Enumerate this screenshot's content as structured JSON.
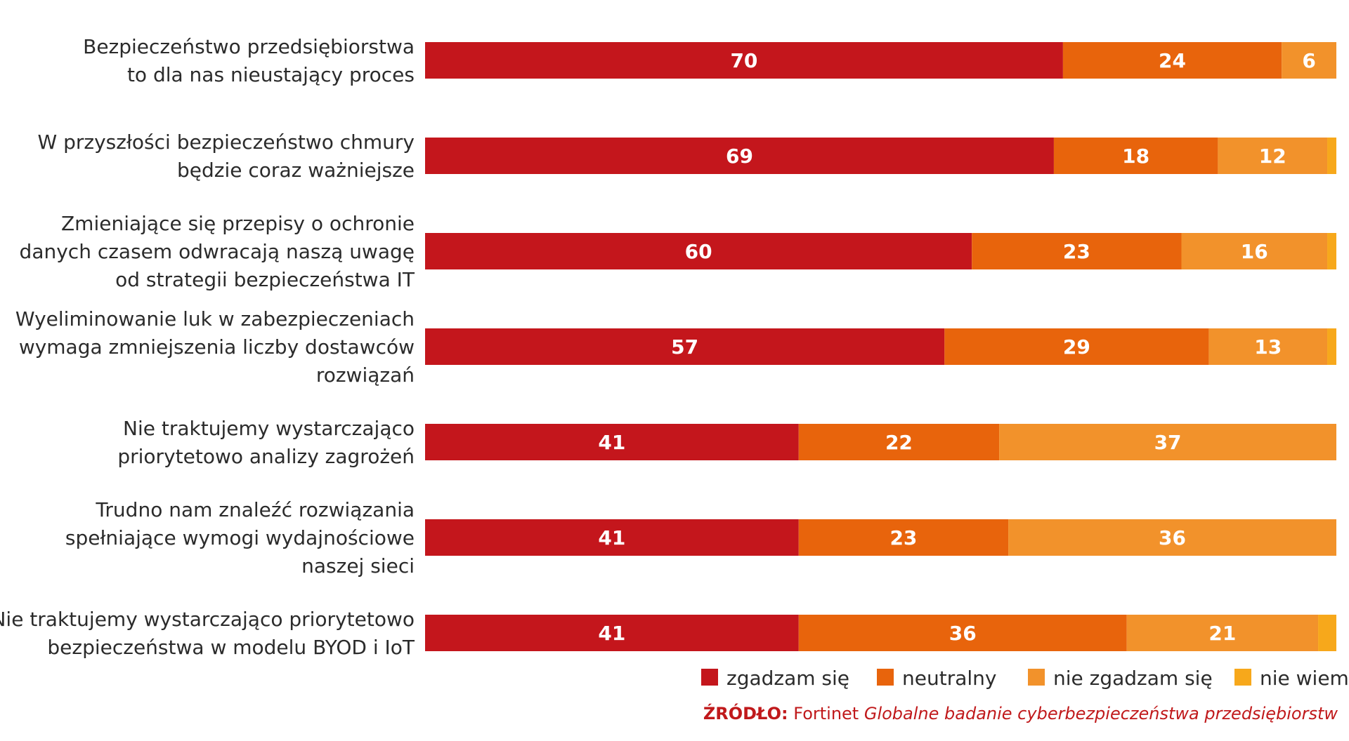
{
  "chart_data": {
    "type": "bar",
    "orientation": "horizontal",
    "stacked": true,
    "unit": "%",
    "xlim": [
      0,
      100
    ],
    "categories": [
      [
        "Bezpieczeństwo przedsiębiorstwa",
        "to dla nas nieustający proces"
      ],
      [
        "W przyszłości bezpieczeństwo chmury",
        "będzie coraz ważniejsze"
      ],
      [
        "Zmieniające się przepisy o ochronie",
        "danych czasem odwracają naszą uwagę",
        "od strategii bezpieczeństwa IT"
      ],
      [
        "Wyeliminowanie luk w zabezpieczeniach",
        "wymaga zmniejszenia liczby dostawców",
        "rozwiązań"
      ],
      [
        "Nie traktujemy wystarczająco",
        "priorytetowo analizy zagrożeń"
      ],
      [
        "Trudno nam znaleźć rozwiązania",
        "spełniające wymogi wydajnościowe",
        "naszej sieci"
      ],
      [
        "Nie traktujemy wystarczająco priorytetowo",
        "bezpieczeństwa w modelu BYOD i IoT"
      ]
    ],
    "series": [
      {
        "name": "zgadzam się",
        "color": "#c4161c",
        "values": [
          70,
          69,
          60,
          57,
          41,
          41,
          41
        ]
      },
      {
        "name": "neutralny",
        "color": "#e8640c",
        "values": [
          24,
          18,
          23,
          29,
          22,
          23,
          36
        ]
      },
      {
        "name": "nie zgadzam się",
        "color": "#f2922b",
        "values": [
          6,
          12,
          16,
          13,
          37,
          36,
          21
        ]
      },
      {
        "name": "nie wiem",
        "color": "#f7a81b",
        "values": [
          0,
          1,
          1,
          1,
          0,
          0,
          2
        ]
      }
    ],
    "data_labels": [
      [
        "70",
        "24",
        "6",
        ""
      ],
      [
        "69",
        "18",
        "12",
        ""
      ],
      [
        "60",
        "23",
        "16",
        ""
      ],
      [
        "57",
        "29",
        "13",
        ""
      ],
      [
        "41",
        "22",
        "37",
        ""
      ],
      [
        "41",
        "23",
        "36",
        ""
      ],
      [
        "41",
        "36",
        "21",
        ""
      ]
    ],
    "legend_position": "bottom-right"
  },
  "source": {
    "label": "ŹRÓDŁO:",
    "publisher": "Fortinet",
    "title": "Globalne badanie cyberbezpieczeństwa przedsiębiorstw"
  }
}
